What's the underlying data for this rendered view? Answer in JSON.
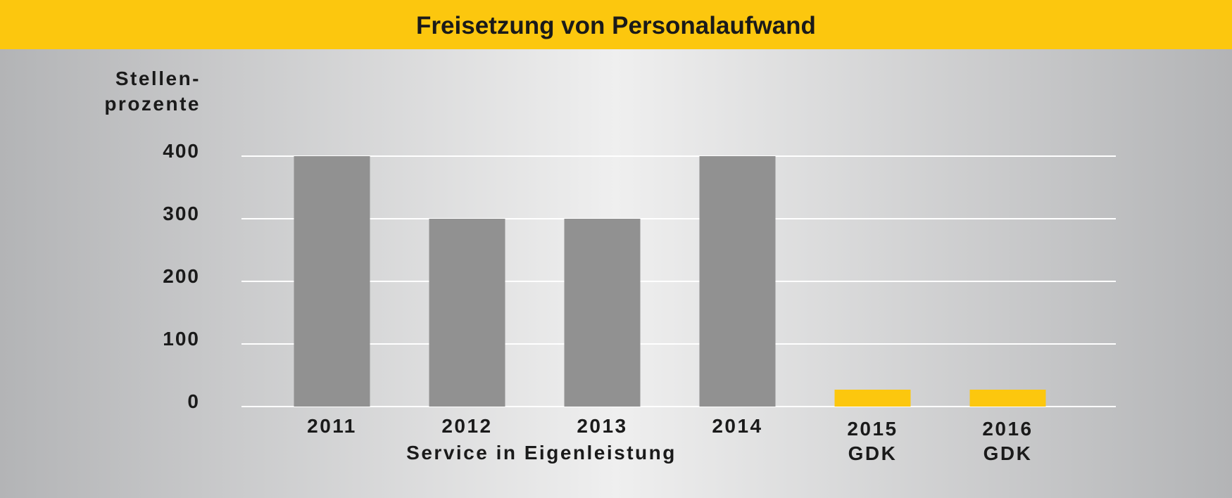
{
  "colors": {
    "header": "#fcc70e",
    "bar_default": "#919191",
    "bar_highlight": "#fcc70e",
    "grid": "#ffffff",
    "text": "#1a1a1a"
  },
  "chart_data": {
    "type": "bar",
    "title": "Freisetzung von Personalaufwand",
    "ylabel": [
      "Stellen-",
      "prozente"
    ],
    "ylim": [
      0,
      400
    ],
    "yticks": [
      0,
      100,
      200,
      300,
      400
    ],
    "grid": true,
    "categories": [
      {
        "label": [
          "2011"
        ],
        "value": 400,
        "highlight": false
      },
      {
        "label": [
          "2012"
        ],
        "value": 300,
        "highlight": false
      },
      {
        "label": [
          "2013"
        ],
        "value": 300,
        "highlight": false
      },
      {
        "label": [
          "2014"
        ],
        "value": 400,
        "highlight": false
      },
      {
        "label": [
          "2015",
          "GDK"
        ],
        "value": 27,
        "highlight": true
      },
      {
        "label": [
          "2016",
          "GDK"
        ],
        "value": 27,
        "highlight": true
      }
    ],
    "group_label": "Service in Eigenleistung"
  }
}
